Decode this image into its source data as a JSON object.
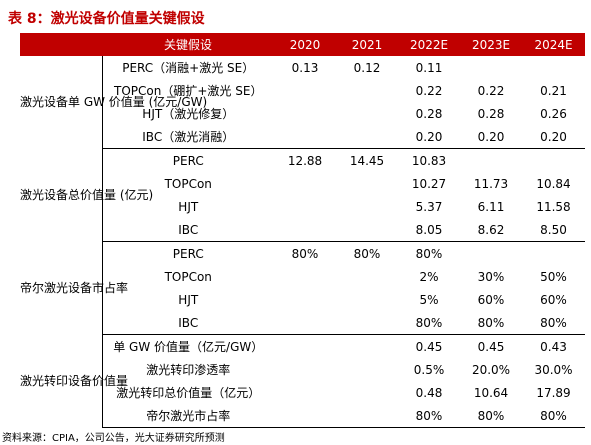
{
  "title": "表 8：激光设备价值量关键假设",
  "header": [
    "",
    "关键假设",
    "2020",
    "2021",
    "2022E",
    "2023E",
    "2024E"
  ],
  "groups": [
    {
      "label": "激光设备单 GW 价值量 (亿元/GW)",
      "rows": [
        {
          "name": "PERC（消融+激光 SE）",
          "v": [
            "0.13",
            "0.12",
            "0.11",
            "",
            ""
          ]
        },
        {
          "name": "TOPCon（硼扩+激光 SE）",
          "v": [
            "",
            "",
            "0.22",
            "0.22",
            "0.21"
          ]
        },
        {
          "name": "HJT（激光修复）",
          "v": [
            "",
            "",
            "0.28",
            "0.28",
            "0.26"
          ]
        },
        {
          "name": "IBC（激光消融）",
          "v": [
            "",
            "",
            "0.20",
            "0.20",
            "0.20"
          ]
        }
      ]
    },
    {
      "label": "激光设备总价值量 (亿元)",
      "rows": [
        {
          "name": "PERC",
          "v": [
            "12.88",
            "14.45",
            "10.83",
            "",
            ""
          ]
        },
        {
          "name": "TOPCon",
          "v": [
            "",
            "",
            "10.27",
            "11.73",
            "10.84"
          ]
        },
        {
          "name": "HJT",
          "v": [
            "",
            "",
            "5.37",
            "6.11",
            "11.58"
          ]
        },
        {
          "name": "IBC",
          "v": [
            "",
            "",
            "8.05",
            "8.62",
            "8.50"
          ]
        }
      ]
    },
    {
      "label": "帝尔激光设备市占率",
      "rows": [
        {
          "name": "PERC",
          "v": [
            "80%",
            "80%",
            "80%",
            "",
            ""
          ]
        },
        {
          "name": "TOPCon",
          "v": [
            "",
            "",
            "2%",
            "30%",
            "50%"
          ]
        },
        {
          "name": "HJT",
          "v": [
            "",
            "",
            "5%",
            "60%",
            "60%"
          ]
        },
        {
          "name": "IBC",
          "v": [
            "",
            "",
            "80%",
            "80%",
            "80%"
          ]
        }
      ]
    },
    {
      "label": "激光转印设备价值量",
      "rows": [
        {
          "name": "单 GW 价值量（亿元/GW）",
          "v": [
            "",
            "",
            "0.45",
            "0.45",
            "0.43"
          ]
        },
        {
          "name": "激光转印渗透率",
          "v": [
            "",
            "",
            "0.5%",
            "20.0%",
            "30.0%"
          ]
        },
        {
          "name": "激光转印总价值量（亿元）",
          "v": [
            "",
            "",
            "0.48",
            "10.64",
            "17.89"
          ]
        },
        {
          "name": "帝尔激光市占率",
          "v": [
            "",
            "",
            "80%",
            "80%",
            "80%"
          ]
        }
      ]
    }
  ],
  "footer": "资料来源：CPIA，公司公告，光大证券研究所预测",
  "colors": {
    "accent": "#c00000",
    "text": "#000000",
    "background": "#ffffff"
  }
}
